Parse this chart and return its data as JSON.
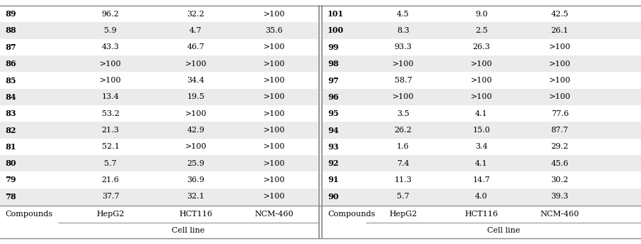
{
  "left_compounds": [
    "78",
    "79",
    "80",
    "81",
    "82",
    "83",
    "84",
    "85",
    "86",
    "87",
    "88",
    "89"
  ],
  "left_hepg2": [
    "37.7",
    "21.6",
    "5.7",
    "52.1",
    "21.3",
    "53.2",
    "13.4",
    ">100",
    ">100",
    "43.3",
    "5.9",
    "96.2"
  ],
  "left_hct116": [
    "32.1",
    "36.9",
    "25.9",
    ">100",
    "42.9",
    ">100",
    "19.5",
    "34.4",
    ">100",
    "46.7",
    "4.7",
    "32.2"
  ],
  "left_ncm460": [
    ">100",
    ">100",
    ">100",
    ">100",
    ">100",
    ">100",
    ">100",
    ">100",
    ">100",
    ">100",
    "35.6",
    ">100"
  ],
  "right_compounds": [
    "90",
    "91",
    "92",
    "93",
    "94",
    "95",
    "96",
    "97",
    "98",
    "99",
    "100",
    "101"
  ],
  "right_hepg2": [
    "5.7",
    "11.3",
    "7.4",
    "1.6",
    "26.2",
    "3.5",
    ">100",
    "58.7",
    ">100",
    "93.3",
    "8.3",
    "4.5"
  ],
  "right_hct116": [
    "4.0",
    "14.7",
    "4.1",
    "3.4",
    "15.0",
    "4.1",
    ">100",
    ">100",
    ">100",
    "26.3",
    "2.5",
    "9.0"
  ],
  "right_ncm460": [
    "39.3",
    "30.2",
    "45.6",
    "29.2",
    "87.7",
    "77.6",
    ">100",
    ">100",
    ">100",
    ">100",
    "26.1",
    "42.5"
  ],
  "header_cell_line": "Cell line",
  "col_compounds": "Compounds",
  "col_hepg2": "HepG2",
  "col_hct116": "HCT116",
  "col_ncm460": "NCM-460",
  "bg_odd": "#ebebeb",
  "bg_even": "#ffffff",
  "header_bg": "#ffffff",
  "line_color": "#888888",
  "text_color": "#000000",
  "font_size": 8.0,
  "header_font_size": 8.0
}
